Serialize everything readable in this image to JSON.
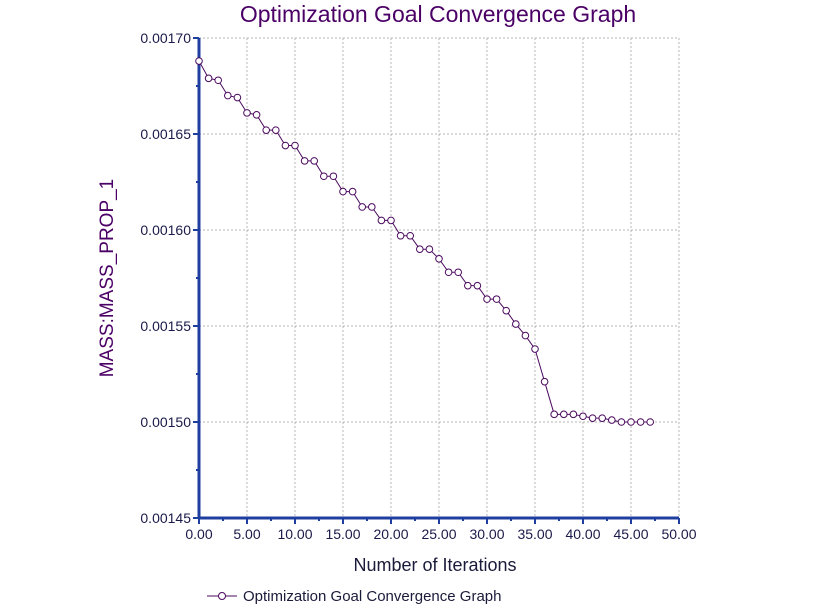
{
  "colors": {
    "series": "#4b0a5e",
    "axis": "#1f3fa0",
    "grid": "#b4b4b4",
    "title": "#4b0066"
  },
  "chart_data": {
    "type": "line",
    "title": "Optimization Goal Convergence Graph",
    "xlabel": "Number of Iterations",
    "ylabel": "MASS:MASS_PROP_1",
    "xlim": [
      0,
      50
    ],
    "ylim": [
      0.00145,
      0.0017
    ],
    "grid": true,
    "legend_position": "bottom-center",
    "x_ticks": [
      "0.00",
      "5.00",
      "10.00",
      "15.00",
      "20.00",
      "25.00",
      "30.00",
      "35.00",
      "40.00",
      "45.00",
      "50.00"
    ],
    "y_ticks": [
      "0.00145",
      "0.00150",
      "0.00155",
      "0.00160",
      "0.00165",
      "0.00170"
    ],
    "series": [
      {
        "name": "Optimization Goal Convergence Graph",
        "marker": "circle",
        "x": [
          0,
          1,
          2,
          3,
          4,
          5,
          6,
          7,
          8,
          9,
          10,
          11,
          12,
          13,
          14,
          15,
          16,
          17,
          18,
          19,
          20,
          21,
          22,
          23,
          24,
          25,
          26,
          27,
          28,
          29,
          30,
          31,
          32,
          33,
          34,
          35,
          36,
          37,
          38,
          39,
          40,
          41,
          42,
          43,
          44,
          45,
          46,
          47
        ],
        "y": [
          0.001688,
          0.001679,
          0.001678,
          0.00167,
          0.001669,
          0.001661,
          0.00166,
          0.001652,
          0.001652,
          0.001644,
          0.001644,
          0.001636,
          0.001636,
          0.001628,
          0.001628,
          0.00162,
          0.00162,
          0.001612,
          0.001612,
          0.001605,
          0.001605,
          0.001597,
          0.001597,
          0.00159,
          0.00159,
          0.001585,
          0.001578,
          0.001578,
          0.001571,
          0.001571,
          0.001564,
          0.001564,
          0.001558,
          0.001551,
          0.001545,
          0.001538,
          0.001521,
          0.001504,
          0.001504,
          0.001504,
          0.001503,
          0.001502,
          0.001502,
          0.001501,
          0.0015,
          0.0015,
          0.0015,
          0.0015
        ]
      }
    ]
  }
}
